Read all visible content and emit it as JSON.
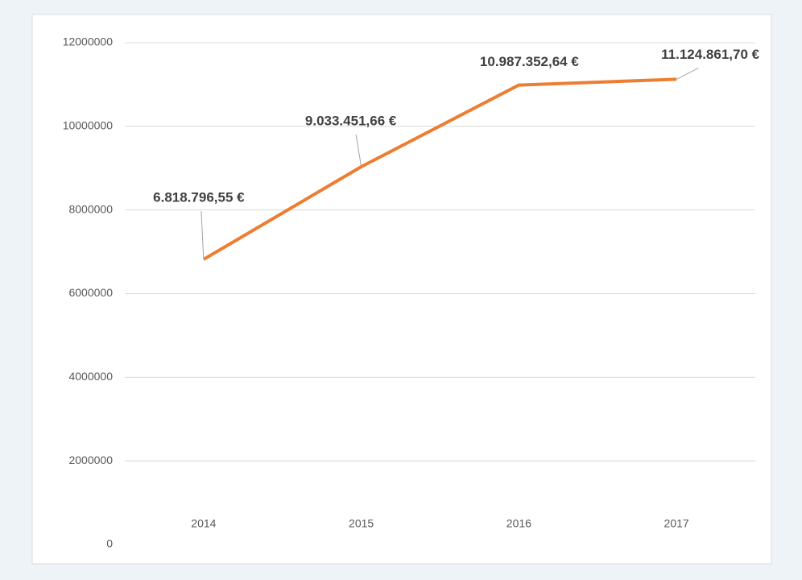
{
  "chart_data": {
    "type": "line",
    "categories": [
      "2014",
      "2015",
      "2016",
      "2017"
    ],
    "values": [
      6818796.55,
      9033451.66,
      10987352.64,
      11124861.7
    ],
    "value_labels": [
      "6.818.796,55 €",
      "9.033.451,66 €",
      "10.987.352,64 €",
      "11.124.861,70 €"
    ],
    "color": "#ed7d31",
    "ylim": [
      0,
      12000000
    ],
    "yticks": [
      0,
      2000000,
      4000000,
      6000000,
      8000000,
      10000000,
      12000000
    ],
    "grid": true
  }
}
